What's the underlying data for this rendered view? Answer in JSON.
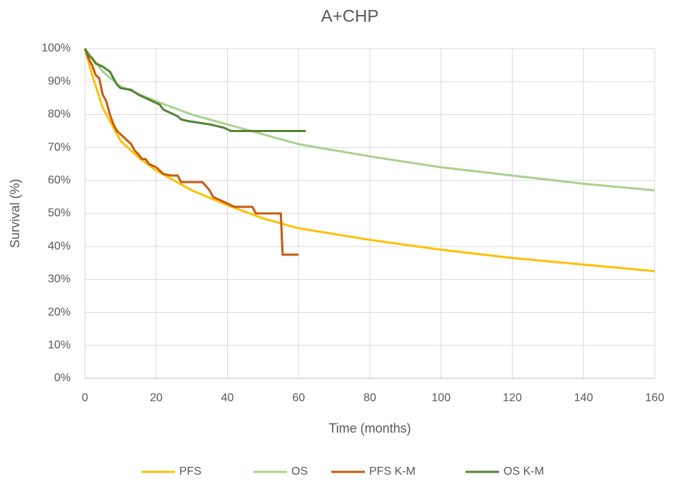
{
  "chart_data": {
    "type": "line",
    "title": "A+CHP",
    "x_label": "Time (months)",
    "y_label": "Survival (%)",
    "xlim": [
      0,
      160
    ],
    "xticks": [
      0,
      20,
      40,
      60,
      80,
      100,
      120,
      140,
      160
    ],
    "ylim": [
      0,
      100
    ],
    "yticks": [
      {
        "value": 0,
        "label": "0%"
      },
      {
        "value": 10,
        "label": "10%"
      },
      {
        "value": 20,
        "label": "20%"
      },
      {
        "value": 30,
        "label": "30%"
      },
      {
        "value": 40,
        "label": "40%"
      },
      {
        "value": 50,
        "label": "50%"
      },
      {
        "value": 60,
        "label": "60%"
      },
      {
        "value": 70,
        "label": "70%"
      },
      {
        "value": 80,
        "label": "80%"
      },
      {
        "value": 90,
        "label": "90%"
      },
      {
        "value": 100,
        "label": "100%"
      }
    ],
    "grid": true,
    "legend": "bottom",
    "series": [
      {
        "name": "PFS",
        "color": "#ffc000",
        "x": [
          0,
          2,
          5,
          10,
          15,
          20,
          30,
          40,
          50,
          60,
          80,
          100,
          120,
          140,
          160
        ],
        "values": [
          100,
          92,
          82,
          72,
          67,
          63,
          57,
          52.5,
          48.5,
          45.5,
          42,
          39,
          36.5,
          34.5,
          32.5
        ]
      },
      {
        "name": "OS",
        "color": "#a9d18e",
        "x": [
          0,
          5,
          10,
          20,
          30,
          40,
          60,
          80,
          100,
          120,
          140,
          160
        ],
        "values": [
          100,
          93,
          88.5,
          84,
          80,
          77,
          71,
          67.3,
          64,
          61.5,
          59,
          57
        ]
      },
      {
        "name": "PFS K-M",
        "color": "#c55a11",
        "x": [
          0,
          1,
          2,
          3,
          4,
          5,
          6,
          7,
          8,
          9,
          10,
          11,
          12,
          13,
          14,
          15,
          16,
          17,
          18,
          19,
          20,
          22,
          24,
          26,
          27,
          33,
          35,
          36,
          37,
          38,
          40,
          42,
          47,
          48,
          55,
          55.5,
          60
        ],
        "values": [
          100,
          97,
          95,
          92,
          91,
          86,
          84,
          80,
          77,
          75,
          74,
          73,
          72,
          71,
          69,
          68,
          66.5,
          66.5,
          65,
          64.5,
          64,
          62,
          61.5,
          61.5,
          59.5,
          59.5,
          57,
          55,
          54.5,
          54,
          53,
          52,
          52,
          50,
          50,
          37.5,
          37.5
        ]
      },
      {
        "name": "OS K-M",
        "color": "#548235",
        "x": [
          0,
          1,
          2,
          3,
          5,
          7,
          8,
          9,
          10,
          13,
          15,
          17,
          19,
          21,
          22,
          24,
          26,
          27,
          29,
          32,
          35,
          37,
          39,
          40,
          41,
          62
        ],
        "values": [
          100,
          98,
          97,
          95.5,
          94.5,
          93,
          91,
          89,
          88,
          87.5,
          86,
          85,
          84,
          83,
          81.5,
          80.5,
          79.5,
          78.5,
          78,
          77.5,
          77,
          76.5,
          76,
          75.5,
          75,
          75
        ]
      }
    ]
  }
}
